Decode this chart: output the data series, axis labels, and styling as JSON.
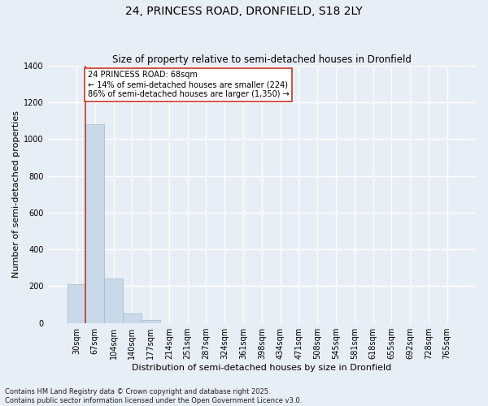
{
  "title1": "24, PRINCESS ROAD, DRONFIELD, S18 2LY",
  "title2": "Size of property relative to semi-detached houses in Dronfield",
  "xlabel": "Distribution of semi-detached houses by size in Dronfield",
  "ylabel": "Number of semi-detached properties",
  "bar_labels": [
    "30sqm",
    "67sqm",
    "104sqm",
    "140sqm",
    "177sqm",
    "214sqm",
    "251sqm",
    "287sqm",
    "324sqm",
    "361sqm",
    "398sqm",
    "434sqm",
    "471sqm",
    "508sqm",
    "545sqm",
    "581sqm",
    "618sqm",
    "655sqm",
    "692sqm",
    "728sqm",
    "765sqm"
  ],
  "bar_values": [
    210,
    1080,
    240,
    50,
    15,
    0,
    0,
    0,
    0,
    0,
    0,
    0,
    0,
    0,
    0,
    0,
    0,
    0,
    0,
    0,
    0
  ],
  "bar_color": "#c9d9e8",
  "bar_edge_color": "#a0b8cc",
  "background_color": "#e8eef5",
  "grid_color": "#ffffff",
  "vline_color": "#c0392b",
  "annotation_text": "24 PRINCESS ROAD: 68sqm\n← 14% of semi-detached houses are smaller (224)\n86% of semi-detached houses are larger (1,350) →",
  "annotation_box_color": "#c0392b",
  "ylim": [
    0,
    1400
  ],
  "yticks": [
    0,
    200,
    400,
    600,
    800,
    1000,
    1200,
    1400
  ],
  "footnote": "Contains HM Land Registry data © Crown copyright and database right 2025.\nContains public sector information licensed under the Open Government Licence v3.0.",
  "title_fontsize": 10,
  "subtitle_fontsize": 8.5,
  "axis_label_fontsize": 8,
  "tick_fontsize": 7,
  "annotation_fontsize": 7,
  "footnote_fontsize": 6
}
